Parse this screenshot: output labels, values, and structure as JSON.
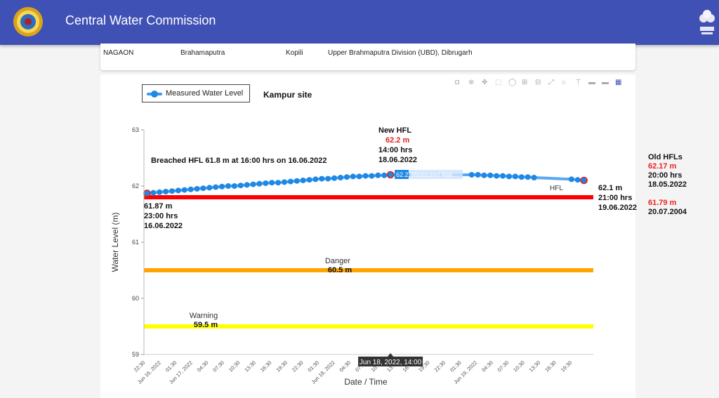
{
  "header": {
    "title": "Central Water Commission"
  },
  "station": {
    "district": "NAGAON",
    "basin": "Brahamaputra",
    "river": "Kopili",
    "division": "Upper Brahmaputra Division (UBD), Dibrugarh"
  },
  "legend": {
    "label": "Measured Water Level"
  },
  "site": "Kampur site",
  "modebar": {
    "icons": [
      "camera-icon",
      "zoom-icon",
      "pan-icon",
      "box-select-icon",
      "lasso-icon",
      "zoom-in-icon",
      "zoom-out-icon",
      "autoscale-icon",
      "home-icon",
      "spike-icon",
      "hover-closest-icon",
      "hover-compare-icon",
      "plotly-logo-icon"
    ],
    "glyphs": [
      "◘",
      "⊕",
      "✥",
      "⬚",
      "◯",
      "⊞",
      "⊟",
      "⤢",
      "⌂",
      "⊤",
      "▬",
      "▬",
      "▦"
    ]
  },
  "annotations": {
    "breached": "Breached HFL 61.8 m at 16:00 hrs on 16.06.2022",
    "start": {
      "value": "61.87 m",
      "time": "23:00 hrs",
      "date": "16.06.2022"
    },
    "new_hfl": {
      "title": "New HFL",
      "value": "62.2 m",
      "time": "14:00 hrs",
      "date": "18.06.2022"
    },
    "end": {
      "value": "62.1 m",
      "time": "21:00 hrs",
      "date": "19.06.2022"
    },
    "hfl_label": "HFL",
    "danger": {
      "label": "Danger",
      "value": "60.5 m"
    },
    "warning": {
      "label": "Warning",
      "value": "59.5 m"
    },
    "hover": {
      "value": "62.2",
      "series": "Measured Wat…",
      "time_label": "Jun 18, 2022, 14:00"
    }
  },
  "old_hfls": {
    "title": "Old HFLs",
    "first": {
      "value": "62.17 m",
      "time": "20:00 hrs",
      "date": "18.05.2022"
    },
    "second": {
      "value": "61.79 m",
      "date": "20.07.2004"
    }
  },
  "colors": {
    "header": "#4051b5",
    "series": "#1e88e5",
    "hfl": "#ff0000",
    "danger": "#ffa500",
    "warning": "#ffff00",
    "highlight": "#e22222"
  },
  "chart_data": {
    "type": "line",
    "xlabel": "Date / Time",
    "ylabel": "Water Level (m)",
    "ylim": [
      59,
      63
    ],
    "yticks": [
      59,
      60,
      61,
      62,
      63
    ],
    "x_start": "2022-06-16 22:30",
    "x_end": "2022-06-19 22:30",
    "xtick_labels": [
      "22:30",
      "Jun 16, 2022",
      "01:30",
      "Jun 17, 2022",
      "04:30",
      "07:30",
      "10:30",
      "13:30",
      "16:30",
      "19:30",
      "22:30",
      "01:30",
      "Jun 18, 2022",
      "04:30",
      "07:30",
      "10:30",
      "13:30",
      "16:30",
      "19:30",
      "22:30",
      "01:30",
      "Jun 19, 2022",
      "04:30",
      "07:30",
      "10:30",
      "13:30",
      "16:30",
      "19:30"
    ],
    "thresholds": [
      {
        "name": "HFL",
        "value": 61.8
      },
      {
        "name": "Danger",
        "value": 60.5
      },
      {
        "name": "Warning",
        "value": 59.5
      }
    ],
    "series": [
      {
        "name": "Measured Water Level",
        "points": [
          [
            "2022-06-16 23:00",
            61.87
          ],
          [
            "2022-06-17 00:00",
            61.88
          ],
          [
            "2022-06-17 01:00",
            61.89
          ],
          [
            "2022-06-17 02:00",
            61.9
          ],
          [
            "2022-06-17 03:00",
            61.91
          ],
          [
            "2022-06-17 04:00",
            61.92
          ],
          [
            "2022-06-17 05:00",
            61.93
          ],
          [
            "2022-06-17 06:00",
            61.94
          ],
          [
            "2022-06-17 07:00",
            61.95
          ],
          [
            "2022-06-17 08:00",
            61.96
          ],
          [
            "2022-06-17 09:00",
            61.97
          ],
          [
            "2022-06-17 10:00",
            61.98
          ],
          [
            "2022-06-17 11:00",
            61.99
          ],
          [
            "2022-06-17 12:00",
            62.0
          ],
          [
            "2022-06-17 13:00",
            62.0
          ],
          [
            "2022-06-17 14:00",
            62.01
          ],
          [
            "2022-06-17 15:00",
            62.02
          ],
          [
            "2022-06-17 16:00",
            62.03
          ],
          [
            "2022-06-17 17:00",
            62.04
          ],
          [
            "2022-06-17 18:00",
            62.05
          ],
          [
            "2022-06-17 19:00",
            62.06
          ],
          [
            "2022-06-17 20:00",
            62.06
          ],
          [
            "2022-06-17 21:00",
            62.07
          ],
          [
            "2022-06-17 22:00",
            62.08
          ],
          [
            "2022-06-17 23:00",
            62.09
          ],
          [
            "2022-06-18 00:00",
            62.1
          ],
          [
            "2022-06-18 01:00",
            62.11
          ],
          [
            "2022-06-18 02:00",
            62.12
          ],
          [
            "2022-06-18 03:00",
            62.13
          ],
          [
            "2022-06-18 04:00",
            62.13
          ],
          [
            "2022-06-18 05:00",
            62.14
          ],
          [
            "2022-06-18 06:00",
            62.15
          ],
          [
            "2022-06-18 07:00",
            62.16
          ],
          [
            "2022-06-18 08:00",
            62.17
          ],
          [
            "2022-06-18 09:00",
            62.17
          ],
          [
            "2022-06-18 10:00",
            62.18
          ],
          [
            "2022-06-18 11:00",
            62.18
          ],
          [
            "2022-06-18 12:00",
            62.19
          ],
          [
            "2022-06-18 13:00",
            62.19
          ],
          [
            "2022-06-18 14:00",
            62.2
          ],
          [
            "2022-06-19 03:00",
            62.2
          ],
          [
            "2022-06-19 04:00",
            62.2
          ],
          [
            "2022-06-19 05:00",
            62.19
          ],
          [
            "2022-06-19 06:00",
            62.19
          ],
          [
            "2022-06-19 07:00",
            62.18
          ],
          [
            "2022-06-19 08:00",
            62.18
          ],
          [
            "2022-06-19 09:00",
            62.17
          ],
          [
            "2022-06-19 10:00",
            62.17
          ],
          [
            "2022-06-19 11:00",
            62.16
          ],
          [
            "2022-06-19 12:00",
            62.16
          ],
          [
            "2022-06-19 13:00",
            62.15
          ],
          [
            "2022-06-19 19:00",
            62.12
          ],
          [
            "2022-06-19 20:00",
            62.11
          ],
          [
            "2022-06-19 21:00",
            62.1
          ]
        ]
      }
    ]
  }
}
